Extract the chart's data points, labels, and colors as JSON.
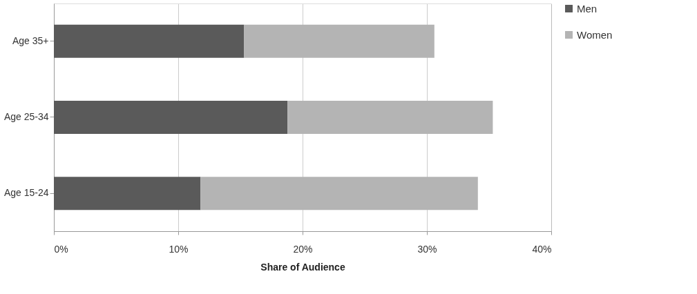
{
  "chart_data": {
    "type": "bar",
    "orientation": "horizontal",
    "stacked": true,
    "xlabel": "Share of Audience",
    "categories": [
      "Age 35+",
      "Age 25-34",
      "Age 15-24"
    ],
    "series": [
      {
        "name": "Men",
        "color": "#5a5a5a",
        "values": [
          15.3,
          18.8,
          11.8
        ]
      },
      {
        "name": "Women",
        "color": "#b4b4b4",
        "values": [
          15.3,
          16.5,
          22.3
        ]
      }
    ],
    "xlim": [
      0,
      40
    ],
    "xticks": [
      {
        "value": 0,
        "label": "0%"
      },
      {
        "value": 10,
        "label": "10%"
      },
      {
        "value": 20,
        "label": "20%"
      },
      {
        "value": 30,
        "label": "30%"
      },
      {
        "value": 40,
        "label": "40%"
      }
    ],
    "grid": "x",
    "legend": "right"
  }
}
